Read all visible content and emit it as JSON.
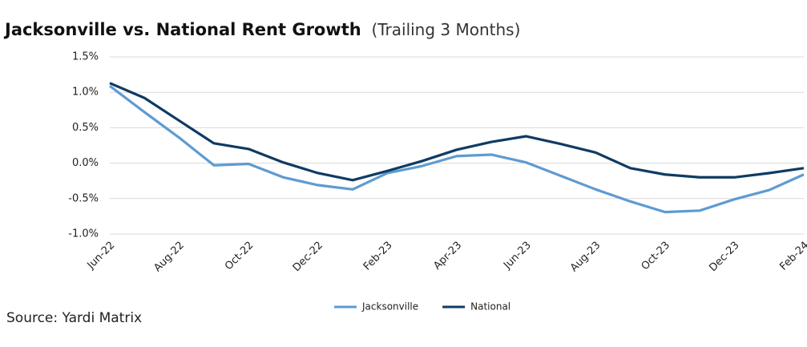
{
  "chart_data": {
    "type": "line",
    "title": "Jacksonville vs. National Rent Growth",
    "subtitle": "(Trailing 3 Months)",
    "source": "Source: Yardi Matrix",
    "categories": [
      "Jun-22",
      null,
      "Aug-22",
      null,
      "Oct-22",
      null,
      "Dec-22",
      null,
      "Feb-23",
      null,
      "Apr-23",
      null,
      "Jun-23",
      null,
      "Aug-23",
      null,
      "Oct-23",
      null,
      "Dec-23",
      null,
      "Feb-24"
    ],
    "series": [
      {
        "name": "Jacksonville",
        "color": "#5e9bd1",
        "values": [
          1.09,
          0.72,
          0.36,
          -0.03,
          -0.01,
          -0.2,
          -0.31,
          -0.37,
          -0.14,
          -0.04,
          0.1,
          0.12,
          0.01,
          -0.18,
          -0.37,
          -0.54,
          -0.69,
          -0.67,
          -0.51,
          -0.38,
          -0.16
        ]
      },
      {
        "name": "National",
        "color": "#0f3b63",
        "values": [
          1.13,
          0.92,
          0.6,
          0.28,
          0.2,
          0.01,
          -0.14,
          -0.24,
          -0.11,
          0.03,
          0.19,
          0.3,
          0.38,
          0.27,
          0.15,
          -0.07,
          -0.16,
          -0.2,
          -0.2,
          -0.14,
          -0.07
        ]
      }
    ],
    "ylim": [
      -1.0,
      1.5
    ],
    "yticks": [
      {
        "value": 1.5,
        "label": "1.5%"
      },
      {
        "value": 1.0,
        "label": "1.0%"
      },
      {
        "value": 0.5,
        "label": "0.5%"
      },
      {
        "value": 0.0,
        "label": "0.0%"
      },
      {
        "value": -0.5,
        "label": "-0.5%"
      },
      {
        "value": -1.0,
        "label": "-1.0%"
      }
    ],
    "grid": true,
    "legend": "bottom"
  }
}
